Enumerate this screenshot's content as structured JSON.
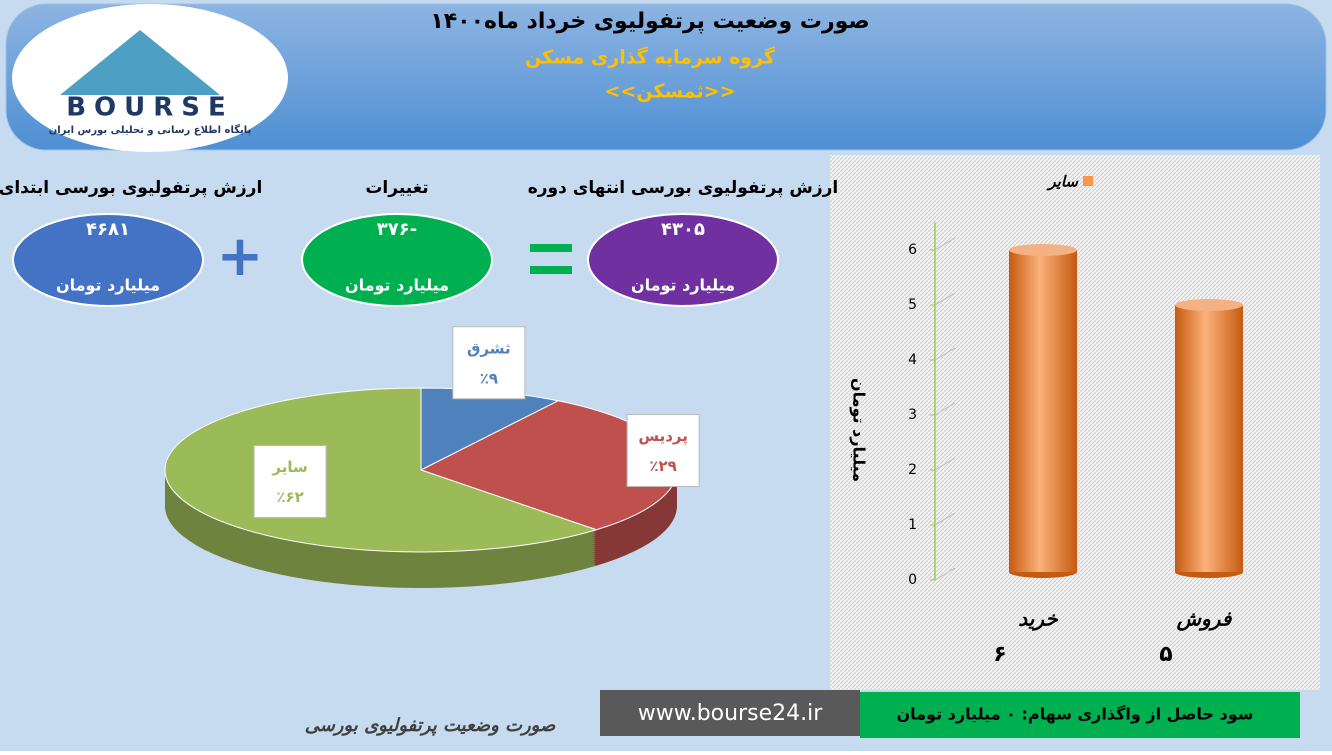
{
  "header": {
    "title": "صورت وضعیت پرتفولیوی خرداد ماه۱۴۰۰",
    "subtitle": "گروه سرمایه گذاری مسکن",
    "symbol": "<<ثمسکن>>"
  },
  "logo": {
    "name": "BOURSE",
    "tagline": "پایگاه اطلاع رسانی و تحلیلی بورس ایران"
  },
  "summary": [
    {
      "label": "ارزش پرتفولیوی بورسی ابتدای دوره",
      "value": "۴۶۸۱",
      "unit": "میلیارد تومان",
      "color": "#4472c4"
    },
    {
      "label": "تغییرات",
      "value": "-۳۷۶",
      "unit": "میلیارد تومان",
      "color": "#00b050"
    },
    {
      "label": "ارزش پرتفولیوی بورسی انتهای دوره",
      "value": "۴۳۰۵",
      "unit": "میلیارد تومان",
      "color": "#7030a0"
    }
  ],
  "chart_data": [
    {
      "type": "pie",
      "categories": [
        "ثشرق",
        "پردیس",
        "سایر"
      ],
      "values": [
        9,
        29,
        62
      ],
      "value_labels": [
        "٪۹",
        "٪۲۹",
        "٪۶۲"
      ],
      "colors": [
        "#4f81bd",
        "#c0504d",
        "#9bbb59"
      ]
    },
    {
      "type": "bar",
      "y_label": "میلیارد تومان",
      "categories": [
        "خرید",
        "فروش"
      ],
      "series": [
        {
          "name": "سایر",
          "color": "#f79646",
          "values": [
            6,
            5
          ],
          "value_labels": [
            "۶",
            "۵"
          ]
        }
      ],
      "ylim": [
        0,
        6.5
      ],
      "yticks": [
        0,
        1,
        2,
        3,
        4,
        5,
        6
      ]
    }
  ],
  "footer": {
    "profit": "سود حاصل از واگذاری سهام: ۰ میلیارد تومان",
    "website": "www.bourse24.ir",
    "caption": "صورت وضعیت پرتفولیوی بورسی"
  }
}
